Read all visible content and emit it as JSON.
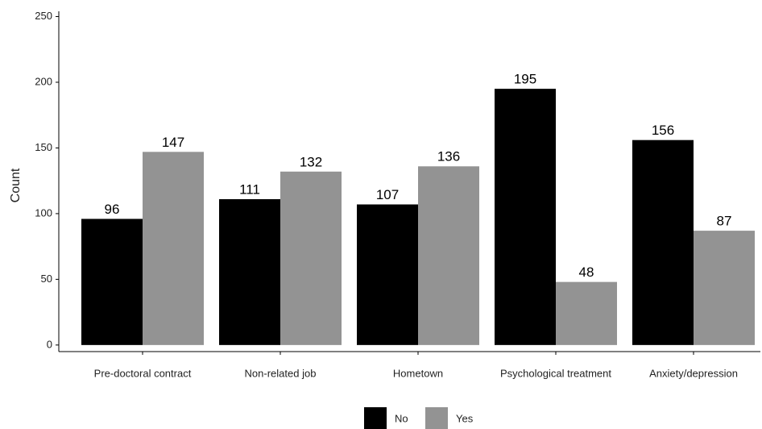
{
  "chart_data": {
    "type": "bar",
    "y_label": "Count",
    "categories": [
      "Pre-doctoral contract",
      "Non-related job",
      "Hometown",
      "Psychological treatment",
      "Anxiety/depression"
    ],
    "series": [
      {
        "name": "No",
        "color": "#000000",
        "values": [
          96,
          111,
          107,
          195,
          156
        ]
      },
      {
        "name": "Yes",
        "color": "#939393",
        "values": [
          147,
          132,
          136,
          48,
          87
        ]
      }
    ],
    "ylim": [
      -5,
      254
    ],
    "yticks": [
      0,
      50,
      100,
      150,
      200,
      250
    ],
    "grid": false,
    "legend": "bottom"
  }
}
